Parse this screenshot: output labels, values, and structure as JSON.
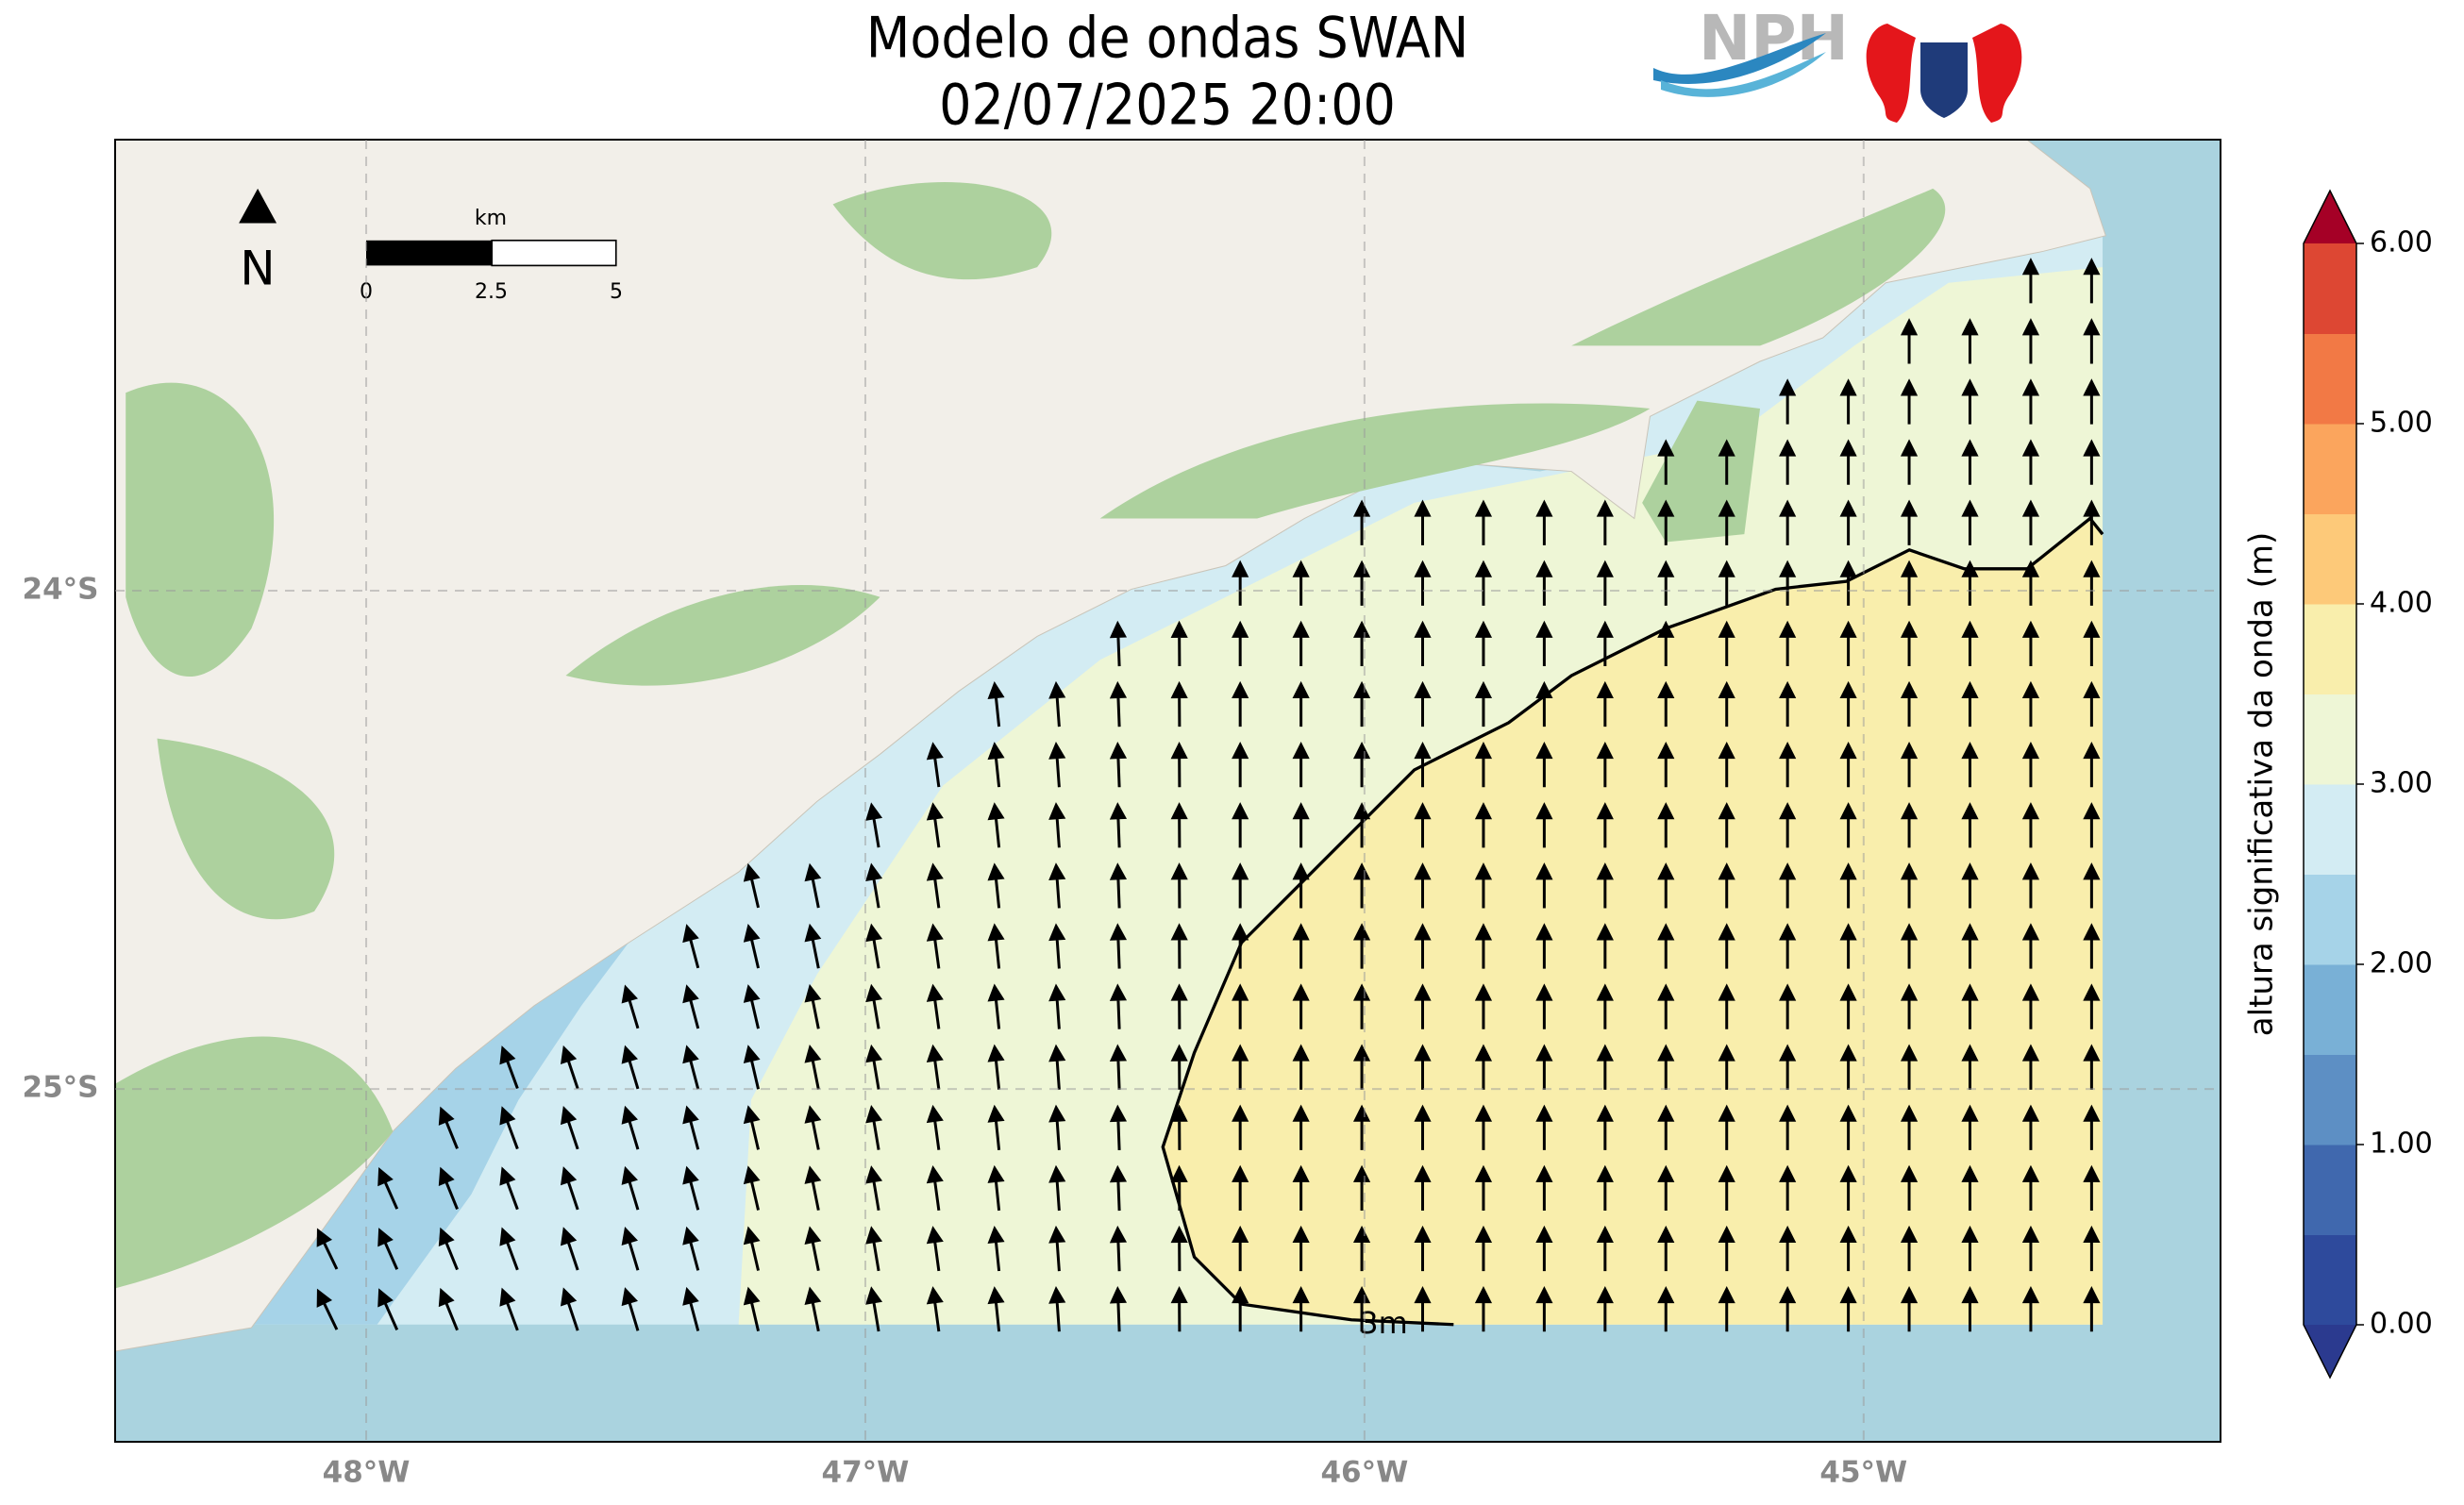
{
  "header": {
    "title": "Modelo de ondas SWAN",
    "subtitle": "02/07/2025 20:00",
    "logo_text": "NPH"
  },
  "map": {
    "xlim": [
      -48.503,
      -44.285
    ],
    "ylim": [
      -25.708,
      -23.095
    ],
    "xticks": [
      {
        "value": -48,
        "label": "48°W"
      },
      {
        "value": -47,
        "label": "47°W"
      },
      {
        "value": -46,
        "label": "46°W"
      },
      {
        "value": -45,
        "label": "45°W"
      }
    ],
    "yticks": [
      {
        "value": -24,
        "label": "24°S"
      },
      {
        "value": -25,
        "label": "25°S"
      }
    ],
    "north_label": "N",
    "contour_label": "3m",
    "scale": {
      "unit": "km",
      "ticks": [
        0,
        2.5,
        5
      ]
    }
  },
  "colorbar": {
    "label": "altura significativa da onda (m)",
    "lim": [
      0,
      6
    ],
    "ticks": [
      {
        "value": 0,
        "label": "0.00"
      },
      {
        "value": 1,
        "label": "1.00"
      },
      {
        "value": 2,
        "label": "2.00"
      },
      {
        "value": 3,
        "label": "3.00"
      },
      {
        "value": 4,
        "label": "4.00"
      },
      {
        "value": 5,
        "label": "5.00"
      },
      {
        "value": 6,
        "label": "6.00"
      }
    ],
    "colors": [
      "#2e4a9c",
      "#4068ae",
      "#5d8fc4",
      "#79b0d6",
      "#a6d3e8",
      "#d3ecf3",
      "#eef6d6",
      "#f9eeac",
      "#fdc979",
      "#fba55d",
      "#f27945",
      "#dd4733",
      "#bc1c2a"
    ],
    "under_color": "#2b3a8f",
    "over_color": "#a50026"
  }
}
